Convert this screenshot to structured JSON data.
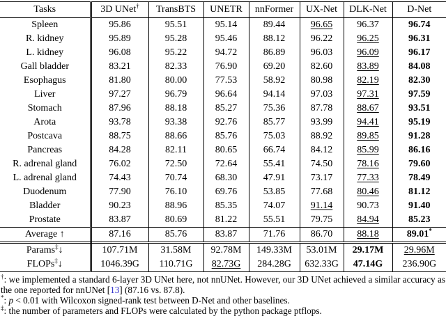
{
  "page": {
    "background": "#ffffff",
    "text_color": "#000000",
    "citation_color": "#3333cc"
  },
  "table": {
    "columns": [
      {
        "label": "Tasks"
      },
      {
        "label": "3D UNet",
        "sup": "†"
      },
      {
        "label": "TransBTS"
      },
      {
        "label": "UNETR"
      },
      {
        "label": "nnFormer"
      },
      {
        "label": "UX-Net"
      },
      {
        "label": "DLK-Net"
      },
      {
        "label": "D-Net"
      }
    ],
    "task_rows": [
      {
        "task": "Spleen",
        "values": [
          "95.86",
          "95.51",
          "95.14",
          "89.44",
          "96.65",
          "96.37",
          "96.74"
        ],
        "underline_col": 4,
        "bold_col": 6
      },
      {
        "task": "R. kidney",
        "values": [
          "95.89",
          "95.28",
          "95.46",
          "88.12",
          "96.22",
          "96.25",
          "96.31"
        ],
        "underline_col": 5,
        "bold_col": 6
      },
      {
        "task": "L. kidney",
        "values": [
          "96.08",
          "95.22",
          "94.72",
          "86.89",
          "96.03",
          "96.09",
          "96.17"
        ],
        "underline_col": 5,
        "bold_col": 6
      },
      {
        "task": "Gall bladder",
        "values": [
          "83.21",
          "82.33",
          "76.90",
          "69.20",
          "82.60",
          "83.89",
          "84.08"
        ],
        "underline_col": 5,
        "bold_col": 6
      },
      {
        "task": "Esophagus",
        "values": [
          "81.80",
          "80.00",
          "77.53",
          "58.92",
          "80.98",
          "82.19",
          "82.30"
        ],
        "underline_col": 5,
        "bold_col": 6
      },
      {
        "task": "Liver",
        "values": [
          "97.27",
          "96.79",
          "96.64",
          "94.14",
          "97.03",
          "97.31",
          "97.59"
        ],
        "underline_col": 5,
        "bold_col": 6
      },
      {
        "task": "Stomach",
        "values": [
          "87.96",
          "88.18",
          "85.27",
          "75.36",
          "87.78",
          "88.67",
          "93.51"
        ],
        "underline_col": 5,
        "bold_col": 6
      },
      {
        "task": "Arota",
        "values": [
          "93.78",
          "93.38",
          "92.76",
          "85.77",
          "93.99",
          "94.41",
          "95.19"
        ],
        "underline_col": 5,
        "bold_col": 6
      },
      {
        "task": "Postcava",
        "values": [
          "88.75",
          "88.66",
          "85.76",
          "75.03",
          "88.92",
          "89.85",
          "91.28"
        ],
        "underline_col": 5,
        "bold_col": 6
      },
      {
        "task": "Pancreas",
        "values": [
          "84.28",
          "82.11",
          "80.65",
          "66.74",
          "84.12",
          "85.99",
          "86.16"
        ],
        "underline_col": 5,
        "bold_col": 6
      },
      {
        "task": "R. adrenal gland",
        "values": [
          "76.02",
          "72.50",
          "72.64",
          "55.41",
          "74.50",
          "78.16",
          "79.60"
        ],
        "underline_col": 5,
        "bold_col": 6
      },
      {
        "task": "L. adrenal gland",
        "values": [
          "74.43",
          "70.74",
          "68.30",
          "47.91",
          "73.17",
          "77.33",
          "78.49"
        ],
        "underline_col": 5,
        "bold_col": 6
      },
      {
        "task": "Duodenum",
        "values": [
          "77.90",
          "76.10",
          "69.76",
          "53.85",
          "77.68",
          "80.46",
          "81.12"
        ],
        "underline_col": 5,
        "bold_col": 6
      },
      {
        "task": "Bladder",
        "values": [
          "90.23",
          "88.96",
          "85.35",
          "74.07",
          "91.14",
          "90.73",
          "91.40"
        ],
        "underline_col": 4,
        "bold_col": 6
      },
      {
        "task": "Prostate",
        "values": [
          "83.87",
          "80.69",
          "81.22",
          "55.51",
          "79.75",
          "84.94",
          "85.23"
        ],
        "underline_col": 5,
        "bold_col": 6
      }
    ],
    "average_row": {
      "task": "Average ↑",
      "values": [
        "87.16",
        "85.76",
        "83.87",
        "71.76",
        "86.70",
        "88.18",
        "89.01"
      ],
      "underline_col": 5,
      "bold_col": 6,
      "bold_sup": "*"
    },
    "stat_rows": [
      {
        "task": "Params",
        "task_sup": "‡",
        "task_arrow": "↓",
        "values": [
          "107.71M",
          "31.58M",
          "92.78M",
          "149.33M",
          "53.01M",
          "29.17M",
          "29.96M"
        ],
        "bold_col": 5,
        "underline_col": 6
      },
      {
        "task": "FLOPs",
        "task_sup": "‡",
        "task_arrow": "↓",
        "values": [
          "1046.39G",
          "110.71G",
          "82.73G",
          "284.28G",
          "632.33G",
          "47.14G",
          "236.90G"
        ],
        "underline_col": 2,
        "bold_col": 5
      }
    ]
  },
  "footnotes": {
    "fn1": {
      "marker": "†",
      "sep": ": ",
      "part1": "we implemented a standard 6-layer 3D UNet here, not nnUNet. However, our 3D UNet achieved a similar accuracy as the one reported for nnUNet ",
      "bracket_open": "[",
      "cite": "13",
      "bracket_close": "]",
      "part2": " (87.16 vs. 87.8)."
    },
    "fn2": {
      "marker": "*",
      "sep": ": ",
      "part1": "p",
      "part2": " < 0.01 with Wilcoxon signed-rank test between D-Net and other baselines."
    },
    "fn3": {
      "marker": "‡",
      "sep": ": ",
      "part1": "the number of parameters and FLOPs were calculated by the python package ptflops."
    }
  }
}
